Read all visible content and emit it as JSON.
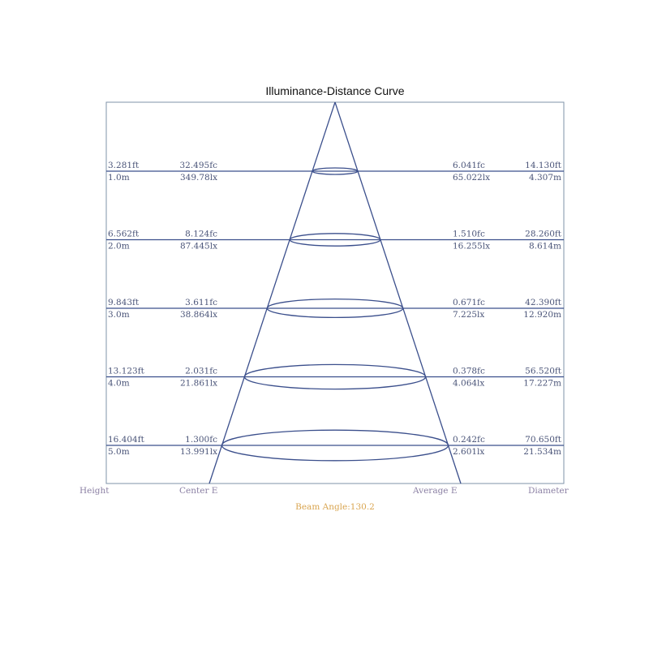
{
  "chart_data": {
    "type": "diagram",
    "title": "Illuminance-Distance Curve",
    "beam_angle_label": "Beam Angle:130.2",
    "beam_angle_deg": 130.2,
    "column_labels": {
      "height": "Height",
      "center": "Center E",
      "average": "Average E",
      "diameter": "Diameter"
    },
    "rows": [
      {
        "height_ft": "3.281ft",
        "height_m": "1.0m",
        "center_fc": "32.495fc",
        "center_lx": "349.78lx",
        "avg_fc": "6.041fc",
        "avg_lx": "65.022lx",
        "diam_ft": "14.130ft",
        "diam_m": "4.307m"
      },
      {
        "height_ft": "6.562ft",
        "height_m": "2.0m",
        "center_fc": "8.124fc",
        "center_lx": "87.445lx",
        "avg_fc": "1.510fc",
        "avg_lx": "16.255lx",
        "diam_ft": "28.260ft",
        "diam_m": "8.614m"
      },
      {
        "height_ft": "9.843ft",
        "height_m": "3.0m",
        "center_fc": "3.611fc",
        "center_lx": "38.864lx",
        "avg_fc": "0.671fc",
        "avg_lx": "7.225lx",
        "diam_ft": "42.390ft",
        "diam_m": "12.920m"
      },
      {
        "height_ft": "13.123ft",
        "height_m": "4.0m",
        "center_fc": "2.031fc",
        "center_lx": "21.861lx",
        "avg_fc": "0.378fc",
        "avg_lx": "4.064lx",
        "diam_ft": "56.520ft",
        "diam_m": "17.227m"
      },
      {
        "height_ft": "16.404ft",
        "height_m": "5.0m",
        "center_fc": "1.300fc",
        "center_lx": "13.991lx",
        "avg_fc": "0.242fc",
        "avg_lx": "2.601lx",
        "diam_ft": "70.650ft",
        "diam_m": "21.534m"
      }
    ],
    "colors": {
      "lines": "#3b4f8c",
      "text": "#4a5478",
      "footer": "#8a7fa3",
      "beam": "#d9a550"
    }
  }
}
